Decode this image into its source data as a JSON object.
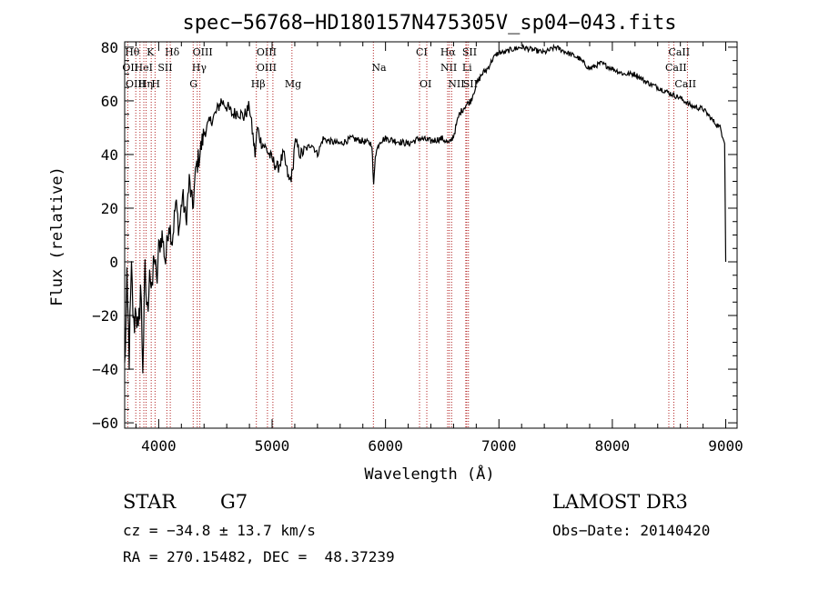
{
  "chart_data": {
    "type": "line",
    "title": "spec−56768−HD180157N475305V_sp04−043.fits",
    "xlabel": "Wavelength (Å)",
    "ylabel": "Flux (relative)",
    "xlim": [
      3700,
      9100
    ],
    "ylim": [
      -62,
      82
    ],
    "xticks": [
      {
        "value": 4000,
        "label": "4000"
      },
      {
        "value": 5000,
        "label": "5000"
      },
      {
        "value": 6000,
        "label": "6000"
      },
      {
        "value": 7000,
        "label": "7000"
      },
      {
        "value": 8000,
        "label": "8000"
      },
      {
        "value": 9000,
        "label": "9000"
      }
    ],
    "yticks": [
      {
        "value": -60,
        "label": "−60"
      },
      {
        "value": -40,
        "label": "−40"
      },
      {
        "value": -20,
        "label": "−20"
      },
      {
        "value": 0,
        "label": "0"
      },
      {
        "value": 20,
        "label": "20"
      },
      {
        "value": 40,
        "label": "40"
      },
      {
        "value": 60,
        "label": "60"
      },
      {
        "value": 80,
        "label": "80"
      }
    ],
    "series": [
      {
        "name": "flux",
        "color": "#000000",
        "x": [
          3700,
          3720,
          3740,
          3760,
          3780,
          3800,
          3820,
          3840,
          3860,
          3880,
          3900,
          3920,
          3940,
          3960,
          3980,
          4000,
          4030,
          4060,
          4090,
          4120,
          4150,
          4180,
          4210,
          4240,
          4270,
          4300,
          4330,
          4360,
          4400,
          4450,
          4500,
          4550,
          4600,
          4650,
          4700,
          4750,
          4800,
          4850,
          4870,
          4900,
          4950,
          5000,
          5050,
          5100,
          5150,
          5180,
          5200,
          5250,
          5300,
          5350,
          5400,
          5450,
          5500,
          5600,
          5700,
          5800,
          5880,
          5895,
          5910,
          5950,
          6000,
          6100,
          6200,
          6300,
          6400,
          6500,
          6560,
          6600,
          6650,
          6700,
          6750,
          6800,
          6850,
          6900,
          6950,
          7000,
          7050,
          7100,
          7200,
          7300,
          7400,
          7500,
          7600,
          7700,
          7800,
          7900,
          8000,
          8100,
          8200,
          8300,
          8400,
          8500,
          8600,
          8700,
          8800,
          8900,
          8950,
          8990,
          9000
        ],
        "y": [
          -40,
          -10,
          -35,
          -5,
          -25,
          -15,
          -30,
          -8,
          -38,
          -5,
          -20,
          0,
          -15,
          5,
          -10,
          5,
          10,
          0,
          15,
          8,
          22,
          12,
          25,
          15,
          30,
          20,
          35,
          40,
          48,
          52,
          55,
          60,
          58,
          55,
          56,
          54,
          58,
          40,
          50,
          45,
          42,
          38,
          35,
          40,
          30,
          33,
          45,
          40,
          42,
          44,
          40,
          46,
          45,
          44,
          46,
          45,
          44,
          28,
          40,
          45,
          46,
          45,
          44,
          46,
          45,
          46,
          44,
          47,
          55,
          58,
          60,
          66,
          70,
          72,
          76,
          78,
          78,
          79,
          80,
          79,
          78,
          80,
          78,
          76,
          72,
          74,
          72,
          70,
          70,
          67,
          65,
          63,
          61,
          58,
          57,
          52,
          50,
          45,
          0
        ]
      }
    ],
    "lines": [
      {
        "label": "Hθ",
        "wl": 3798,
        "row": 1,
        "dx": -12
      },
      {
        "label": "K",
        "wl": 3934,
        "row": 1,
        "dx": -5
      },
      {
        "label": "Hδ",
        "wl": 4102,
        "row": 1,
        "dx": -6
      },
      {
        "label": "OIII",
        "wl": 4363,
        "row": 1,
        "dx": -8
      },
      {
        "label": "OIII",
        "wl": 4959,
        "row": 1,
        "dx": -12
      },
      {
        "label": "CI",
        "wl": 6300,
        "row": 1,
        "dx": -4
      },
      {
        "label": "Hα",
        "wl": 6563,
        "row": 1,
        "dx": -10
      },
      {
        "label": "SII",
        "wl": 6716,
        "row": 1,
        "dx": -5
      },
      {
        "label": "CaII",
        "wl": 8542,
        "row": 1,
        "dx": -6
      },
      {
        "label": "OII",
        "wl": 3727,
        "row": 2,
        "dx": -6
      },
      {
        "label": "HeI",
        "wl": 3889,
        "row": 2,
        "dx": -13
      },
      {
        "label": "SII",
        "wl": 4072,
        "row": 2,
        "dx": -10
      },
      {
        "label": "Hγ",
        "wl": 4340,
        "row": 2,
        "dx": -6
      },
      {
        "label": "OIII",
        "wl": 5007,
        "row": 2,
        "dx": -18
      },
      {
        "label": "Na",
        "wl": 5893,
        "row": 2,
        "dx": -2
      },
      {
        "label": "NII",
        "wl": 6548,
        "row": 2,
        "dx": -8
      },
      {
        "label": "Li",
        "wl": 6708,
        "row": 2,
        "dx": -4
      },
      {
        "label": "CaII",
        "wl": 8498,
        "row": 2,
        "dx": -4
      },
      {
        "label": "OIII",
        "wl": 3869,
        "row": 3,
        "dx": -20
      },
      {
        "label": "Hη",
        "wl": 3835,
        "row": 3,
        "dx": -2
      },
      {
        "label": "H",
        "wl": 3968,
        "row": 3,
        "dx": -4
      },
      {
        "label": "G",
        "wl": 4304,
        "row": 3,
        "dx": -4
      },
      {
        "label": "Hβ",
        "wl": 4861,
        "row": 3,
        "dx": -6
      },
      {
        "label": "Mg",
        "wl": 5175,
        "row": 3,
        "dx": -8
      },
      {
        "label": "OI",
        "wl": 6364,
        "row": 3,
        "dx": -8
      },
      {
        "label": "NII",
        "wl": 6583,
        "row": 3,
        "dx": -4
      },
      {
        "label": "SII",
        "wl": 6731,
        "row": 3,
        "dx": -6
      },
      {
        "label": "CaII",
        "wl": 8662,
        "row": 3,
        "dx": -14
      }
    ],
    "grid": false
  },
  "info": {
    "class": "STAR",
    "subclass": "G7",
    "survey": "LAMOST DR3",
    "cz": "cz = −34.8 ± 13.7 km/s",
    "obs_date": "Obs−Date: 20140420",
    "coords": "RA = 270.15482, DEC =  48.37239"
  }
}
